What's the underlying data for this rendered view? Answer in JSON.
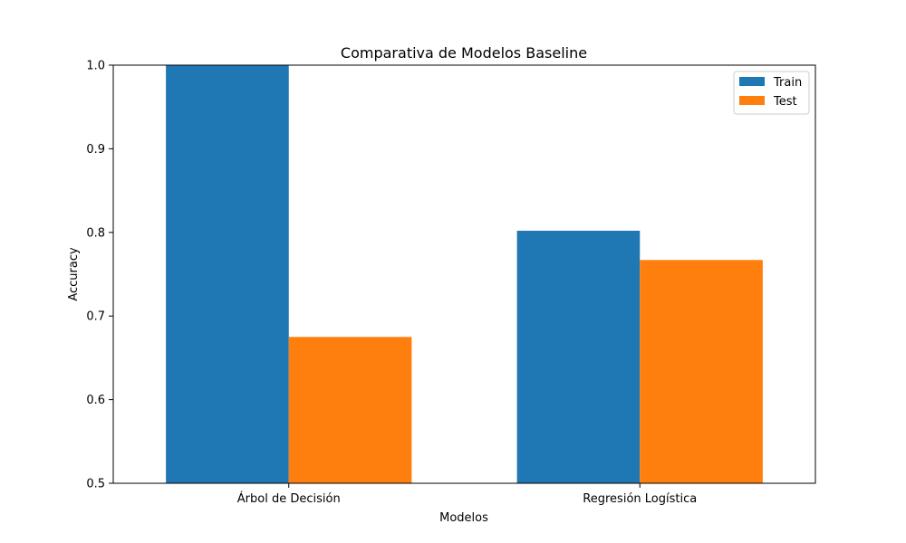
{
  "chart_data": {
    "type": "bar",
    "title": "Comparativa de Modelos Baseline",
    "xlabel": "Modelos",
    "ylabel": "Accuracy",
    "categories": [
      "Árbol de Decisión",
      "Regresión Logística"
    ],
    "series": [
      {
        "name": "Train",
        "values": [
          1.0,
          0.802
        ],
        "color": "#1f77b4"
      },
      {
        "name": "Test",
        "values": [
          0.675,
          0.767
        ],
        "color": "#ff7f0e"
      }
    ],
    "ylim": [
      0.5,
      1.0
    ],
    "yticks": [
      "0.5",
      "0.6",
      "0.7",
      "0.8",
      "0.9",
      "1.0"
    ],
    "grid": false,
    "legend_position": "top-right"
  }
}
